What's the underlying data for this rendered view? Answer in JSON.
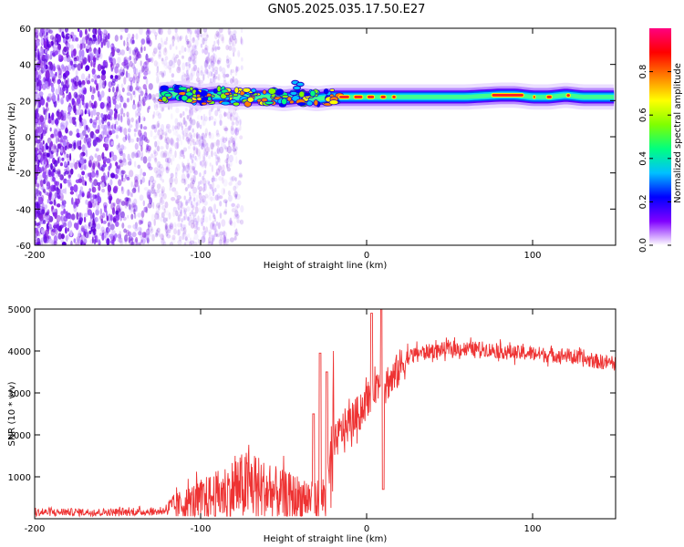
{
  "title": "GN05.2025.035.17.50.E27",
  "chart_data": [
    {
      "type": "heatmap",
      "xlabel": "Height of straight line (km)",
      "ylabel": "Frequency (Hz)",
      "xlim": [
        -200,
        150
      ],
      "ylim": [
        -60,
        60
      ],
      "x_ticks": [
        -200,
        -100,
        0,
        100
      ],
      "y_ticks": [
        60,
        40,
        20,
        0,
        -20,
        -40,
        -60
      ],
      "colorbar": {
        "label": "Normalized spectral amplitude",
        "range": [
          0.0,
          1.0
        ],
        "ticks": [
          "0.0",
          "0.2",
          "0.4",
          "0.6",
          "0.8"
        ],
        "colors": [
          "#ffffff",
          "#8000ff",
          "#0000ff",
          "#00c0ff",
          "#00ff80",
          "#80ff00",
          "#ffff00",
          "#ff8000",
          "#ff0000",
          "#ff0080"
        ]
      },
      "ridge": {
        "x": [
          -125,
          -110,
          -100,
          -90,
          -80,
          -70,
          -60,
          -50,
          -40,
          -30,
          -20,
          -10,
          0,
          20,
          40,
          60,
          80,
          90,
          100,
          110,
          120,
          130,
          140,
          150
        ],
        "y": [
          23,
          24,
          22,
          23,
          22,
          22,
          22,
          21,
          22,
          21,
          22,
          22,
          22,
          22,
          22,
          22,
          23,
          23,
          22,
          22,
          23,
          22,
          22,
          22
        ]
      },
      "noise_region": {
        "x": [
          -200,
          -90
        ],
        "y": [
          -60,
          60
        ]
      }
    },
    {
      "type": "line",
      "xlabel": "Height of straight line (km)",
      "ylabel": "SNR (10 * v/v)",
      "xlim": [
        -200,
        150
      ],
      "ylim": [
        0,
        5000
      ],
      "x_ticks": [
        -200,
        -100,
        0,
        100
      ],
      "y_ticks": [
        1000,
        2000,
        3000,
        4000,
        5000
      ],
      "color": "#ee3333",
      "envelope": {
        "x": [
          -200,
          -180,
          -160,
          -140,
          -125,
          -110,
          -100,
          -90,
          -80,
          -70,
          -60,
          -50,
          -40,
          -30,
          -25,
          -22,
          -20,
          -18,
          -15,
          -10,
          -5,
          0,
          5,
          10,
          15,
          20,
          25,
          30,
          40,
          50,
          60,
          70,
          80,
          90,
          100,
          110,
          120,
          130,
          140,
          150
        ],
        "y": [
          150,
          160,
          155,
          160,
          170,
          350,
          450,
          550,
          700,
          800,
          650,
          550,
          500,
          450,
          550,
          1000,
          1600,
          1900,
          2100,
          2300,
          2500,
          2800,
          3200,
          3250,
          3300,
          3600,
          3850,
          3950,
          4000,
          4050,
          4050,
          4050,
          4000,
          3950,
          3950,
          3900,
          3900,
          3800,
          3750,
          3700
        ]
      },
      "spikes": [
        {
          "x": -32,
          "y": 2500
        },
        {
          "x": -28,
          "y": 3950
        },
        {
          "x": -24,
          "y": 3500
        },
        {
          "x": 3,
          "y": 4900
        },
        {
          "x": 9,
          "y": 5100
        },
        {
          "x": 10,
          "y": 700
        }
      ]
    }
  ]
}
